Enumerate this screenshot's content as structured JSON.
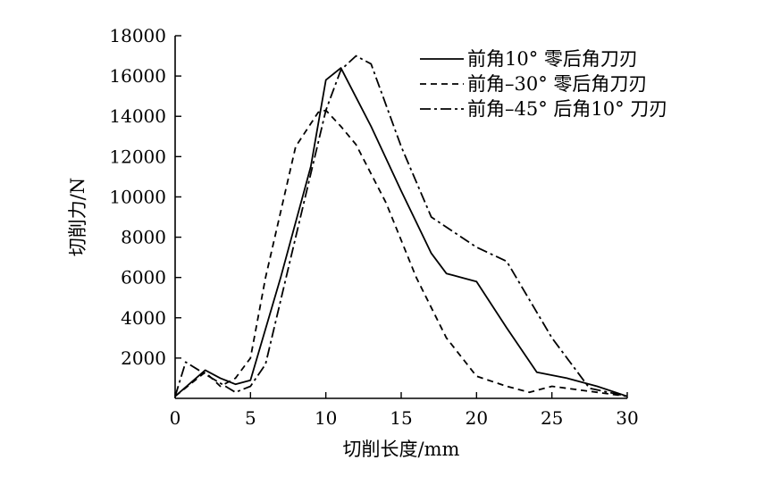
{
  "chart_data": {
    "type": "line",
    "xlabel": "切削长度/mm",
    "ylabel": "切削力/N",
    "xlim": [
      0,
      30
    ],
    "ylim": [
      0,
      18000
    ],
    "xticks": [
      0,
      5,
      10,
      15,
      20,
      25,
      30
    ],
    "yticks": [
      2000,
      4000,
      6000,
      8000,
      10000,
      12000,
      14000,
      16000,
      18000
    ],
    "grid": false,
    "legend_position": "top-right",
    "series": [
      {
        "name": "前角10°  零后角刀刃",
        "style": "solid",
        "x": [
          0,
          2,
          3,
          4,
          5,
          7,
          9,
          10,
          11,
          13,
          15,
          17,
          18,
          19,
          20,
          22,
          24,
          26,
          28,
          30
        ],
        "y": [
          100,
          1400,
          1000,
          700,
          900,
          6000,
          11500,
          15800,
          16400,
          13500,
          10300,
          7200,
          6200,
          6000,
          5800,
          3500,
          1300,
          1000,
          600,
          100
        ]
      },
      {
        "name": "前角–30°  零后角刀刃",
        "style": "dashed",
        "x": [
          0,
          2,
          3,
          4,
          5,
          6,
          8,
          9.5,
          10,
          11,
          12,
          14,
          16,
          18,
          20,
          22,
          23.5,
          25,
          27,
          30
        ],
        "y": [
          100,
          1300,
          600,
          1000,
          2000,
          6000,
          12500,
          14200,
          14300,
          13500,
          12600,
          9700,
          6000,
          3000,
          1100,
          600,
          300,
          600,
          400,
          100
        ]
      },
      {
        "name": "前角–45°  后角10°  刀刃",
        "style": "dashdot",
        "x": [
          0,
          0.7,
          2,
          4,
          5,
          6,
          8,
          10,
          11,
          12,
          13,
          15,
          17,
          20,
          22,
          25,
          27.5,
          30
        ],
        "y": [
          100,
          1800,
          1200,
          300,
          600,
          1700,
          8000,
          14300,
          16300,
          17000,
          16600,
          12500,
          9000,
          7500,
          6800,
          3000,
          500,
          100
        ]
      }
    ]
  }
}
